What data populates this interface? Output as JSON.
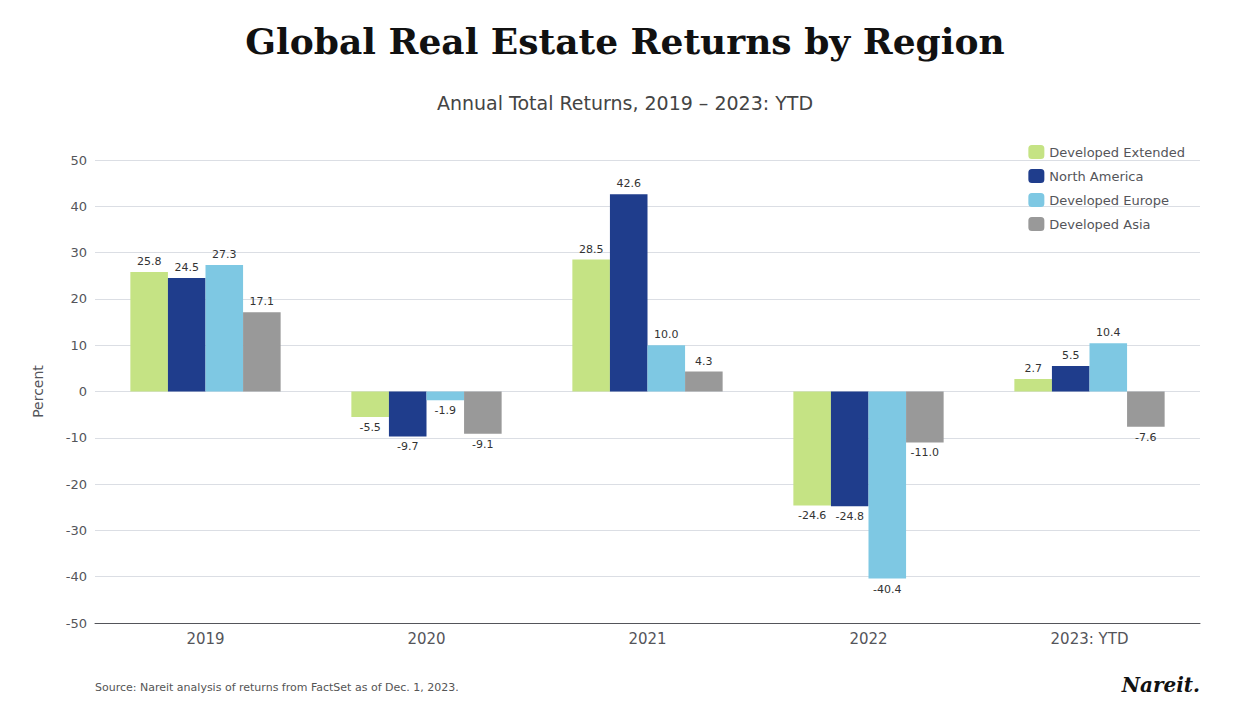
{
  "chart_data": {
    "type": "bar",
    "title": "Global Real Estate Returns by Region",
    "subtitle": "Annual Total Returns, 2019 – 2023: YTD",
    "annotations": [
      "Source: Nareit analysis of returns from FactSet as of Dec. 1, 2023.",
      "Nareit."
    ],
    "ylabel": "Percent",
    "categories": [
      "2019",
      "2020",
      "2021",
      "2022",
      "2023: YTD"
    ],
    "series": [
      {
        "name": "Developed Extended",
        "color": "#c5e384",
        "values": [
          25.8,
          -5.5,
          28.5,
          -24.6,
          2.7
        ]
      },
      {
        "name": "North America",
        "color": "#1f3d8c",
        "values": [
          24.5,
          -9.7,
          42.6,
          -24.8,
          5.5
        ]
      },
      {
        "name": "Developed Europe",
        "color": "#7ec8e3",
        "values": [
          27.3,
          -1.9,
          10.0,
          -40.4,
          10.4
        ],
        "value_labels": [
          "27.3",
          "-1.9",
          "10.0",
          "-40.4",
          "10.4"
        ]
      },
      {
        "name": "Developed Asia",
        "color": "#999999",
        "values": [
          17.1,
          -9.1,
          4.3,
          -11.0,
          -7.6
        ],
        "value_labels": [
          "17.1",
          "-9.1",
          "4.3",
          "-11.0",
          "-7.6"
        ]
      }
    ],
    "ylim": [
      -50,
      50
    ],
    "yticks": [
      -50,
      -40,
      -30,
      -20,
      -10,
      0,
      10,
      20,
      30,
      40,
      50
    ],
    "grid": true,
    "legend": "upper right",
    "data_labels": true
  }
}
